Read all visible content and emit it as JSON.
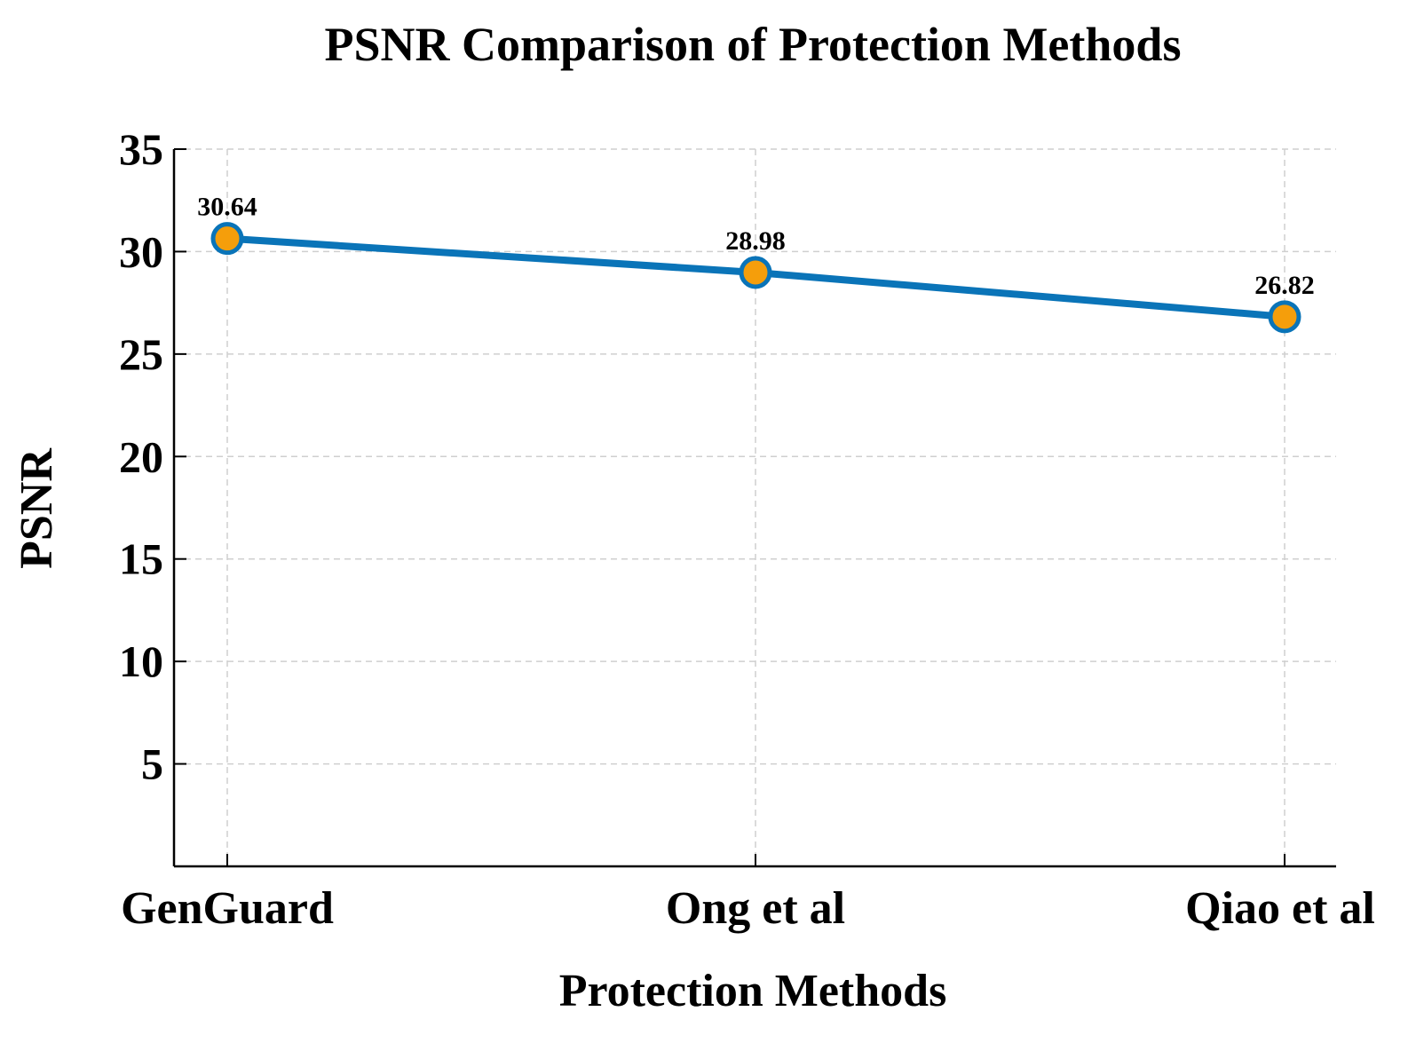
{
  "chart_data": {
    "type": "line",
    "title": "PSNR Comparison of Protection Methods",
    "xlabel": "Protection Methods",
    "ylabel": "PSNR",
    "categories": [
      "GenGuard",
      "Ong et al",
      "Qiao et al"
    ],
    "series": [
      {
        "name": "PSNR",
        "values": [
          30.64,
          28.98,
          26.82
        ],
        "data_labels": [
          "30.64",
          "28.98",
          "26.82"
        ]
      }
    ],
    "ylim": [
      0,
      35
    ],
    "yticks": [
      5,
      10,
      15,
      20,
      25,
      30,
      35
    ],
    "ytick_labels": [
      "5",
      "10",
      "15",
      "20",
      "25",
      "30",
      "35"
    ],
    "grid": true,
    "colors": {
      "line": "#0a74b8",
      "marker_fill": "#f59e0b",
      "marker_edge": "#0a74b8",
      "grid": "#cfcfcf",
      "axis": "#000000"
    }
  }
}
